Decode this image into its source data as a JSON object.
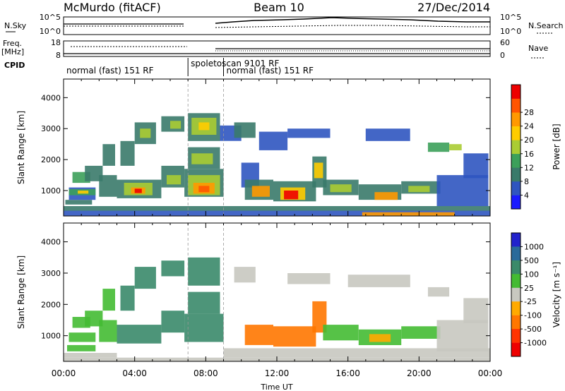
{
  "header": {
    "station": "McMurdo (fitACF)",
    "beam": "Beam 10",
    "date": "27/Dec/2014"
  },
  "top_panels": {
    "nsky_label": "N.Sky",
    "nsky_ticks": [
      "10^5",
      "10^0"
    ],
    "nsearch_label": "N.Search",
    "nsearch_ticks": [
      "10^5",
      "10^0"
    ],
    "freq_label_1": "Freq.",
    "freq_label_2": "[MHz]",
    "freq_ticks": [
      "18",
      "8"
    ],
    "nave_label": "Nave",
    "nave_ticks": [
      "60",
      "0"
    ],
    "cpid_label": "CPID",
    "cpid_segments": [
      {
        "text": "normal (fast) 151 RF",
        "start_hour": 0.0,
        "end_hour": 7.0
      },
      {
        "text": "spoletoscan 9101 RF",
        "start_hour": 7.0,
        "end_hour": 9.0
      },
      {
        "text": "normal (fast) 151 RF",
        "start_hour": 9.0,
        "end_hour": 24.0
      }
    ]
  },
  "chart_data": [
    {
      "type": "heatmap",
      "name": "power-panel",
      "ylabel": "Slant Range [km]",
      "ylim": [
        180,
        4600
      ],
      "yticks": [
        1000,
        2000,
        3000,
        4000
      ],
      "xlim": [
        0,
        24
      ],
      "colorbar_label": "Power [dB]",
      "colorbar_ticks": [
        "4",
        "8",
        "12",
        "16",
        "20",
        "24",
        "28"
      ],
      "colorbar_colors": [
        "#1a1aff",
        "#2f55c0",
        "#3a7a6a",
        "#3ca05a",
        "#aacc33",
        "#ffcc00",
        "#ff9900",
        "#ff5500",
        "#ee0000"
      ],
      "regions": [
        {
          "t0": 0.0,
          "t1": 24.0,
          "r0": 180,
          "r1": 350,
          "c": 1
        },
        {
          "t0": 0.0,
          "t1": 24.0,
          "r0": 350,
          "r1": 500,
          "c": 2
        },
        {
          "t0": 0.1,
          "t1": 1.6,
          "r0": 550,
          "r1": 700,
          "c": 2
        },
        {
          "t0": 0.3,
          "t1": 1.8,
          "r0": 700,
          "r1": 1100,
          "c": 1
        },
        {
          "t0": 0.3,
          "t1": 1.8,
          "r0": 850,
          "r1": 1050,
          "c": 3
        },
        {
          "t0": 0.5,
          "t1": 1.5,
          "r0": 1250,
          "r1": 1600,
          "c": 3
        },
        {
          "t0": 0.8,
          "t1": 1.4,
          "r0": 900,
          "r1": 1000,
          "c": 5
        },
        {
          "t0": 1.2,
          "t1": 2.2,
          "r0": 1300,
          "r1": 1800,
          "c": 2
        },
        {
          "t0": 2.0,
          "t1": 3.0,
          "r0": 800,
          "r1": 1500,
          "c": 2
        },
        {
          "t0": 2.2,
          "t1": 2.9,
          "r0": 1800,
          "r1": 2500,
          "c": 2
        },
        {
          "t0": 3.0,
          "t1": 5.5,
          "r0": 750,
          "r1": 1350,
          "c": 2
        },
        {
          "t0": 3.4,
          "t1": 5.0,
          "r0": 850,
          "r1": 1250,
          "c": 4
        },
        {
          "t0": 3.8,
          "t1": 4.6,
          "r0": 900,
          "r1": 1100,
          "c": 6
        },
        {
          "t0": 4.0,
          "t1": 4.4,
          "r0": 920,
          "r1": 1060,
          "c": 8
        },
        {
          "t0": 3.2,
          "t1": 4.0,
          "r0": 1800,
          "r1": 2600,
          "c": 2
        },
        {
          "t0": 4.0,
          "t1": 5.2,
          "r0": 2500,
          "r1": 3200,
          "c": 2
        },
        {
          "t0": 4.3,
          "t1": 4.9,
          "r0": 2700,
          "r1": 3000,
          "c": 4
        },
        {
          "t0": 5.5,
          "t1": 6.8,
          "r0": 1100,
          "r1": 1800,
          "c": 2
        },
        {
          "t0": 5.8,
          "t1": 6.6,
          "r0": 1200,
          "r1": 1500,
          "c": 4
        },
        {
          "t0": 5.5,
          "t1": 6.8,
          "r0": 2900,
          "r1": 3400,
          "c": 2
        },
        {
          "t0": 6.0,
          "t1": 6.6,
          "r0": 3000,
          "r1": 3250,
          "c": 4
        },
        {
          "t0": 6.8,
          "t1": 9.0,
          "r0": 800,
          "r1": 1700,
          "c": 2
        },
        {
          "t0": 7.0,
          "t1": 8.8,
          "r0": 850,
          "r1": 1500,
          "c": 4
        },
        {
          "t0": 7.3,
          "t1": 8.5,
          "r0": 900,
          "r1": 1250,
          "c": 6
        },
        {
          "t0": 7.6,
          "t1": 8.2,
          "r0": 950,
          "r1": 1150,
          "c": 7
        },
        {
          "t0": 7.0,
          "t1": 8.8,
          "r0": 1700,
          "r1": 2400,
          "c": 2
        },
        {
          "t0": 7.2,
          "t1": 8.4,
          "r0": 1850,
          "r1": 2200,
          "c": 4
        },
        {
          "t0": 7.0,
          "t1": 8.8,
          "r0": 2600,
          "r1": 3500,
          "c": 2
        },
        {
          "t0": 7.2,
          "t1": 8.6,
          "r0": 2800,
          "r1": 3350,
          "c": 4
        },
        {
          "t0": 7.6,
          "t1": 8.2,
          "r0": 2950,
          "r1": 3200,
          "c": 5
        },
        {
          "t0": 8.8,
          "t1": 10.0,
          "r0": 2600,
          "r1": 3100,
          "c": 1
        },
        {
          "t0": 9.6,
          "t1": 10.8,
          "r0": 2700,
          "r1": 3200,
          "c": 2
        },
        {
          "t0": 10.0,
          "t1": 11.0,
          "r0": 1100,
          "r1": 1900,
          "c": 1
        },
        {
          "t0": 10.2,
          "t1": 11.8,
          "r0": 700,
          "r1": 1350,
          "c": 2
        },
        {
          "t0": 10.6,
          "t1": 11.6,
          "r0": 800,
          "r1": 1150,
          "c": 6
        },
        {
          "t0": 11.8,
          "t1": 14.2,
          "r0": 650,
          "r1": 1300,
          "c": 2
        },
        {
          "t0": 12.2,
          "t1": 13.6,
          "r0": 700,
          "r1": 1100,
          "c": 5
        },
        {
          "t0": 12.4,
          "t1": 13.2,
          "r0": 720,
          "r1": 1000,
          "c": 8
        },
        {
          "t0": 14.0,
          "t1": 14.8,
          "r0": 1100,
          "r1": 2100,
          "c": 2
        },
        {
          "t0": 14.1,
          "t1": 14.6,
          "r0": 1400,
          "r1": 1900,
          "c": 5
        },
        {
          "t0": 14.6,
          "t1": 16.6,
          "r0": 850,
          "r1": 1350,
          "c": 2
        },
        {
          "t0": 15.0,
          "t1": 16.2,
          "r0": 950,
          "r1": 1200,
          "c": 4
        },
        {
          "t0": 11.0,
          "t1": 12.6,
          "r0": 2300,
          "r1": 2900,
          "c": 1
        },
        {
          "t0": 12.6,
          "t1": 15.0,
          "r0": 2700,
          "r1": 3000,
          "c": 1
        },
        {
          "t0": 16.6,
          "t1": 19.0,
          "r0": 700,
          "r1": 1200,
          "c": 2
        },
        {
          "t0": 17.5,
          "t1": 18.8,
          "r0": 700,
          "r1": 950,
          "c": 6
        },
        {
          "t0": 19.0,
          "t1": 21.2,
          "r0": 900,
          "r1": 1300,
          "c": 2
        },
        {
          "t0": 19.4,
          "t1": 20.6,
          "r0": 950,
          "r1": 1150,
          "c": 4
        },
        {
          "t0": 21.0,
          "t1": 23.9,
          "r0": 500,
          "r1": 1500,
          "c": 1
        },
        {
          "t0": 17.0,
          "t1": 19.5,
          "r0": 2600,
          "r1": 3000,
          "c": 1
        },
        {
          "t0": 20.5,
          "t1": 21.7,
          "r0": 2250,
          "r1": 2550,
          "c": 3
        },
        {
          "t0": 21.7,
          "t1": 22.4,
          "r0": 2300,
          "r1": 2500,
          "c": 4
        },
        {
          "t0": 22.5,
          "t1": 23.9,
          "r0": 1400,
          "r1": 2200,
          "c": 1
        },
        {
          "t0": 16.8,
          "t1": 22.0,
          "r0": 180,
          "r1": 300,
          "c": 6
        }
      ]
    },
    {
      "type": "heatmap",
      "name": "velocity-panel",
      "ylabel": "Slant Range [km]",
      "ylim": [
        180,
        4600
      ],
      "yticks": [
        1000,
        2000,
        3000,
        4000
      ],
      "xlim": [
        0,
        24
      ],
      "xticks": [
        "00:00",
        "04:00",
        "08:00",
        "12:00",
        "16:00",
        "20:00",
        "00:00"
      ],
      "xlabel": "Time UT",
      "colorbar_label": "Velocity [m s⁻¹]",
      "colorbar_ticks": [
        "1000",
        "500",
        "100",
        "25",
        "-25",
        "-100",
        "-500",
        "-1000"
      ],
      "colorbar_colors": [
        "#2222cc",
        "#2a6a9a",
        "#3a8a6a",
        "#44bb33",
        "#c8c8c0",
        "#ffaa00",
        "#ff7700",
        "#ff3300",
        "#ee0000"
      ],
      "regions": [
        {
          "t0": 0.0,
          "t1": 24.0,
          "r0": 180,
          "r1": 300,
          "c": 4
        },
        {
          "t0": 0.0,
          "t1": 3.0,
          "r0": 300,
          "r1": 450,
          "c": 4
        },
        {
          "t0": 0.2,
          "t1": 1.8,
          "r0": 500,
          "r1": 700,
          "c": 3
        },
        {
          "t0": 0.3,
          "t1": 1.8,
          "r0": 800,
          "r1": 1100,
          "c": 3
        },
        {
          "t0": 0.5,
          "t1": 1.5,
          "r0": 1250,
          "r1": 1600,
          "c": 3
        },
        {
          "t0": 1.2,
          "t1": 2.2,
          "r0": 1300,
          "r1": 1800,
          "c": 3
        },
        {
          "t0": 2.0,
          "t1": 3.0,
          "r0": 800,
          "r1": 1500,
          "c": 3
        },
        {
          "t0": 2.2,
          "t1": 2.9,
          "r0": 1800,
          "r1": 2500,
          "c": 3
        },
        {
          "t0": 3.0,
          "t1": 5.5,
          "r0": 750,
          "r1": 1350,
          "c": 2
        },
        {
          "t0": 3.2,
          "t1": 4.0,
          "r0": 1800,
          "r1": 2600,
          "c": 2
        },
        {
          "t0": 4.0,
          "t1": 5.2,
          "r0": 2500,
          "r1": 3200,
          "c": 2
        },
        {
          "t0": 5.5,
          "t1": 6.8,
          "r0": 1100,
          "r1": 1800,
          "c": 2
        },
        {
          "t0": 5.5,
          "t1": 6.8,
          "r0": 2900,
          "r1": 3400,
          "c": 2
        },
        {
          "t0": 6.8,
          "t1": 9.0,
          "r0": 800,
          "r1": 1700,
          "c": 2
        },
        {
          "t0": 7.0,
          "t1": 8.8,
          "r0": 1700,
          "r1": 2400,
          "c": 2
        },
        {
          "t0": 7.0,
          "t1": 8.8,
          "r0": 2600,
          "r1": 3500,
          "c": 2
        },
        {
          "t0": 9.6,
          "t1": 10.8,
          "r0": 2700,
          "r1": 3200,
          "c": 4
        },
        {
          "t0": 12.6,
          "t1": 15.0,
          "r0": 2650,
          "r1": 3000,
          "c": 4
        },
        {
          "t0": 16.0,
          "t1": 19.5,
          "r0": 2550,
          "r1": 2950,
          "c": 4
        },
        {
          "t0": 20.5,
          "t1": 21.7,
          "r0": 2250,
          "r1": 2550,
          "c": 4
        },
        {
          "t0": 10.2,
          "t1": 11.8,
          "r0": 700,
          "r1": 1350,
          "c": 6
        },
        {
          "t0": 11.8,
          "t1": 14.2,
          "r0": 650,
          "r1": 1300,
          "c": 6
        },
        {
          "t0": 14.0,
          "t1": 14.8,
          "r0": 1100,
          "r1": 2100,
          "c": 6
        },
        {
          "t0": 14.6,
          "t1": 16.6,
          "r0": 850,
          "r1": 1350,
          "c": 3
        },
        {
          "t0": 16.6,
          "t1": 19.0,
          "r0": 700,
          "r1": 1200,
          "c": 3
        },
        {
          "t0": 17.2,
          "t1": 18.4,
          "r0": 800,
          "r1": 1050,
          "c": 5
        },
        {
          "t0": 19.0,
          "t1": 21.2,
          "r0": 900,
          "r1": 1300,
          "c": 3
        },
        {
          "t0": 21.0,
          "t1": 23.9,
          "r0": 500,
          "r1": 1500,
          "c": 4
        },
        {
          "t0": 22.5,
          "t1": 23.9,
          "r0": 1400,
          "r1": 2200,
          "c": 4
        },
        {
          "t0": 9.0,
          "t1": 24.0,
          "r0": 300,
          "r1": 600,
          "c": 4
        }
      ]
    }
  ]
}
